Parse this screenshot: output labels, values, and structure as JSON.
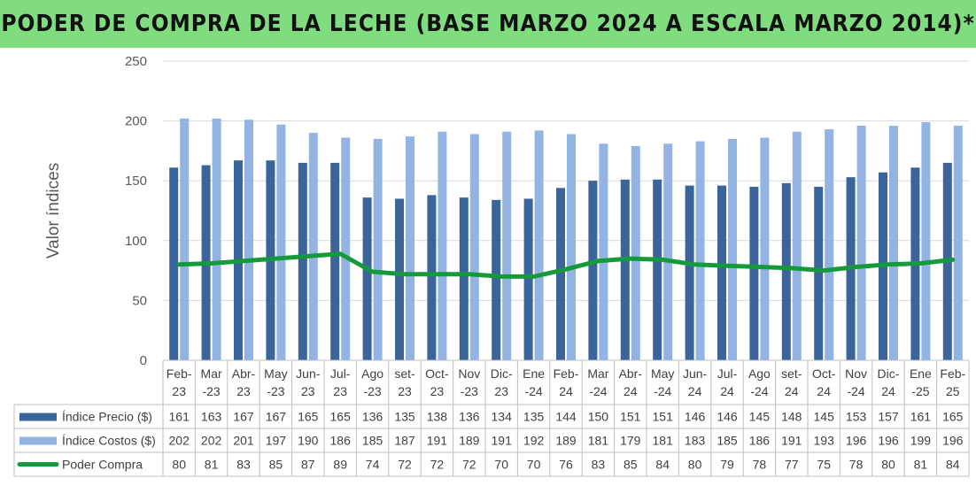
{
  "title": "PODER DE COMPRA DE LA LECHE (BASE MARZO 2024 A ESCALA MARZO 2014)*",
  "colors": {
    "title_bg": "#7fdc7f",
    "precio": "#3b649b",
    "costos": "#93b4e2",
    "poder": "#159a3b",
    "grid": "#d9d9d9"
  },
  "chart_data": {
    "type": "bar",
    "ylabel": "Valor índices",
    "ylim": [
      0,
      250
    ],
    "yticks": [
      0,
      50,
      100,
      150,
      200,
      250
    ],
    "grid": true,
    "legend": "table",
    "categories": [
      [
        "Feb-",
        "23"
      ],
      [
        "Mar",
        "-23"
      ],
      [
        "Abr-",
        "23"
      ],
      [
        "May",
        "-23"
      ],
      [
        "Jun-",
        "23"
      ],
      [
        "Jul-",
        "23"
      ],
      [
        "Ago",
        "-23"
      ],
      [
        "set-",
        "23"
      ],
      [
        "Oct-",
        "23"
      ],
      [
        "Nov",
        "-23"
      ],
      [
        "Dic-",
        "23"
      ],
      [
        "Ene",
        "-24"
      ],
      [
        "Feb-",
        "24"
      ],
      [
        "Mar",
        "-24"
      ],
      [
        "Abr-",
        "24"
      ],
      [
        "May",
        "-24"
      ],
      [
        "Jun-",
        "24"
      ],
      [
        "Jul-",
        "24"
      ],
      [
        "Ago",
        "-24"
      ],
      [
        "set-",
        "24"
      ],
      [
        "Oct-",
        "24"
      ],
      [
        "Nov",
        "-24"
      ],
      [
        "Dic-",
        "24"
      ],
      [
        "Ene",
        "-25"
      ],
      [
        "Feb-",
        "25"
      ]
    ],
    "series": [
      {
        "name": "Índice Precio ($)",
        "type": "bar",
        "values": [
          161,
          163,
          167,
          167,
          165,
          165,
          136,
          135,
          138,
          136,
          134,
          135,
          144,
          150,
          151,
          151,
          146,
          146,
          145,
          148,
          145,
          153,
          157,
          161,
          165
        ]
      },
      {
        "name": "Índice Costos ($)",
        "type": "bar",
        "values": [
          202,
          202,
          201,
          197,
          190,
          186,
          185,
          187,
          191,
          189,
          191,
          192,
          189,
          181,
          179,
          181,
          183,
          185,
          186,
          191,
          193,
          196,
          196,
          199,
          196
        ]
      },
      {
        "name": "Poder Compra",
        "type": "line",
        "values": [
          80,
          81,
          83,
          85,
          87,
          89,
          74,
          72,
          72,
          72,
          70,
          70,
          76,
          83,
          85,
          84,
          80,
          79,
          78,
          77,
          75,
          78,
          80,
          81,
          84
        ]
      }
    ]
  }
}
